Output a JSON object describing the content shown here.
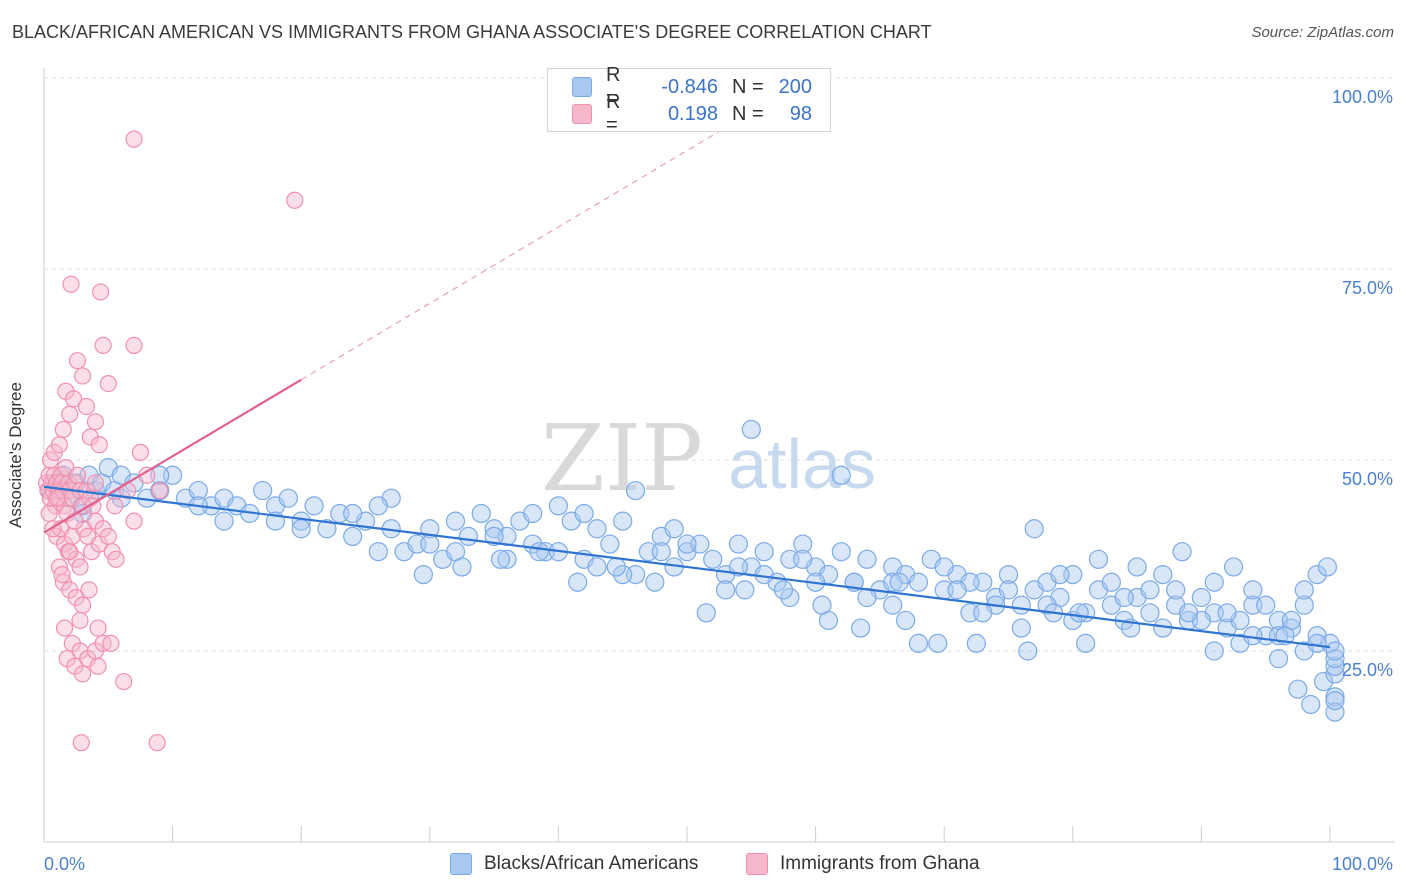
{
  "header": {
    "title": "BLACK/AFRICAN AMERICAN VS IMMIGRANTS FROM GHANA ASSOCIATE'S DEGREE CORRELATION CHART",
    "source": "Source: ZipAtlas.com"
  },
  "watermark": {
    "zip": "ZIP",
    "atlas": "atlas"
  },
  "legend": {
    "series1": {
      "r_label": "R =",
      "r_value": "-0.846",
      "n_label": "N =",
      "n_value": "200",
      "color": "#a9c8f0"
    },
    "series2": {
      "r_label": "R =",
      "r_value": "0.198",
      "n_label": "N =",
      "n_value": "98",
      "color": "#f5b8cb"
    }
  },
  "chart_data": {
    "type": "scatter",
    "title": "BLACK/AFRICAN AMERICAN VS IMMIGRANTS FROM GHANA ASSOCIATE'S DEGREE CORRELATION CHART",
    "xlabel": "",
    "ylabel": "Associate's Degree",
    "xlim": [
      0,
      100
    ],
    "ylim": [
      0,
      100
    ],
    "x_tick_labels": [
      "0.0%",
      "100.0%"
    ],
    "y_tick_labels": [
      "25.0%",
      "50.0%",
      "75.0%",
      "100.0%"
    ],
    "y_ticks": [
      25,
      50,
      75,
      100
    ],
    "grid": true,
    "legend_position": "bottom",
    "series": [
      {
        "name": "Blacks/African Americans",
        "color": "#7aaae8",
        "trend": {
          "x0": 0,
          "y0": 46.5,
          "x1": 100,
          "y1": 25.5
        },
        "points": [
          [
            0.5,
            46
          ],
          [
            1,
            47
          ],
          [
            1.5,
            48
          ],
          [
            2,
            45
          ],
          [
            2.5,
            47
          ],
          [
            3,
            44
          ],
          [
            3.5,
            48
          ],
          [
            4,
            46
          ],
          [
            4.5,
            47
          ],
          [
            5,
            49
          ],
          [
            5.5,
            46
          ],
          [
            6,
            48
          ],
          [
            7,
            47
          ],
          [
            8,
            45
          ],
          [
            9,
            46
          ],
          [
            10,
            48
          ],
          [
            11,
            45
          ],
          [
            12,
            46
          ],
          [
            13,
            44
          ],
          [
            14,
            45
          ],
          [
            15,
            44
          ],
          [
            16,
            43
          ],
          [
            17,
            46
          ],
          [
            18,
            44
          ],
          [
            19,
            45
          ],
          [
            20,
            42
          ],
          [
            21,
            44
          ],
          [
            22,
            41
          ],
          [
            23,
            43
          ],
          [
            24,
            40
          ],
          [
            25,
            42
          ],
          [
            26,
            38
          ],
          [
            27,
            41
          ],
          [
            28,
            38
          ],
          [
            29,
            39
          ],
          [
            30,
            41
          ],
          [
            31,
            37
          ],
          [
            32,
            42
          ],
          [
            33,
            40
          ],
          [
            34,
            43
          ],
          [
            35,
            41
          ],
          [
            36,
            37
          ],
          [
            37,
            42
          ],
          [
            38,
            39
          ],
          [
            39,
            38
          ],
          [
            40,
            44
          ],
          [
            41,
            42
          ],
          [
            42,
            37
          ],
          [
            43,
            41
          ],
          [
            44,
            39
          ],
          [
            45,
            42
          ],
          [
            46,
            35
          ],
          [
            47,
            38
          ],
          [
            48,
            40
          ],
          [
            49,
            36
          ],
          [
            50,
            38
          ],
          [
            51,
            39
          ],
          [
            52,
            37
          ],
          [
            53,
            35
          ],
          [
            54,
            39
          ],
          [
            55,
            36
          ],
          [
            56,
            38
          ],
          [
            57,
            34
          ],
          [
            58,
            37
          ],
          [
            59,
            39
          ],
          [
            60,
            36
          ],
          [
            61,
            35
          ],
          [
            62,
            38
          ],
          [
            63,
            34
          ],
          [
            64,
            37
          ],
          [
            65,
            33
          ],
          [
            66,
            36
          ],
          [
            67,
            35
          ],
          [
            68,
            34
          ],
          [
            69,
            37
          ],
          [
            70,
            33
          ],
          [
            71,
            35
          ],
          [
            72,
            30
          ],
          [
            73,
            34
          ],
          [
            74,
            32
          ],
          [
            75,
            35
          ],
          [
            76,
            31
          ],
          [
            77,
            33
          ],
          [
            78,
            34
          ],
          [
            79,
            32
          ],
          [
            80,
            35
          ],
          [
            81,
            30
          ],
          [
            82,
            33
          ],
          [
            83,
            31
          ],
          [
            84,
            29
          ],
          [
            85,
            32
          ],
          [
            86,
            30
          ],
          [
            87,
            28
          ],
          [
            88,
            31
          ],
          [
            89,
            29
          ],
          [
            90,
            32
          ],
          [
            91,
            30
          ],
          [
            92,
            28
          ],
          [
            93,
            29
          ],
          [
            94,
            31
          ],
          [
            95,
            27
          ],
          [
            96,
            29
          ],
          [
            97,
            28
          ],
          [
            98,
            25
          ],
          [
            99,
            27
          ],
          [
            100,
            26
          ],
          [
            12,
            44
          ],
          [
            18,
            42
          ],
          [
            24,
            43
          ],
          [
            30,
            39
          ],
          [
            36,
            40
          ],
          [
            42,
            43
          ],
          [
            48,
            38
          ],
          [
            54,
            36
          ],
          [
            60,
            34
          ],
          [
            66,
            34
          ],
          [
            72,
            34
          ],
          [
            78,
            31
          ],
          [
            84,
            32
          ],
          [
            90,
            29
          ],
          [
            96,
            27
          ],
          [
            55,
            54
          ],
          [
            62,
            48
          ],
          [
            77,
            41
          ],
          [
            61,
            29
          ],
          [
            66,
            31
          ],
          [
            70,
            36
          ],
          [
            74,
            31
          ],
          [
            79,
            35
          ],
          [
            83,
            34
          ],
          [
            88,
            33
          ],
          [
            92,
            30
          ],
          [
            95,
            31
          ],
          [
            46,
            46
          ],
          [
            27,
            45
          ],
          [
            35,
            40
          ],
          [
            40,
            38
          ],
          [
            45,
            35
          ],
          [
            50,
            39
          ],
          [
            56,
            35
          ],
          [
            58,
            32
          ],
          [
            64,
            32
          ],
          [
            68,
            26
          ],
          [
            73,
            30
          ],
          [
            76,
            28
          ],
          [
            80,
            29
          ],
          [
            82,
            37
          ],
          [
            85,
            36
          ],
          [
            86,
            33
          ],
          [
            89,
            30
          ],
          [
            91,
            34
          ],
          [
            93,
            26
          ],
          [
            94,
            33
          ],
          [
            97,
            29
          ],
          [
            98,
            31
          ],
          [
            99,
            35
          ],
          [
            96,
            24
          ],
          [
            97.5,
            20
          ],
          [
            98.5,
            18
          ],
          [
            99.5,
            21
          ],
          [
            100.5,
            22
          ],
          [
            101,
            23
          ],
          [
            102,
            24
          ],
          [
            103,
            19
          ],
          [
            104,
            25
          ],
          [
            102.5,
            17
          ],
          [
            101.5,
            18.5
          ],
          [
            99,
            26
          ],
          [
            3,
            43
          ],
          [
            6,
            45
          ],
          [
            9,
            48
          ],
          [
            14,
            42
          ],
          [
            20,
            41
          ],
          [
            26,
            44
          ],
          [
            32,
            38
          ],
          [
            38,
            43
          ],
          [
            43,
            36
          ],
          [
            49,
            41
          ],
          [
            53,
            33
          ],
          [
            59,
            37
          ],
          [
            63,
            34
          ],
          [
            67,
            29
          ],
          [
            71,
            33
          ],
          [
            75,
            33
          ],
          [
            81,
            26
          ],
          [
            87,
            35
          ],
          [
            91,
            25
          ],
          [
            94,
            27
          ],
          [
            99.8,
            36
          ],
          [
            98,
            33
          ],
          [
            96.5,
            27
          ],
          [
            92.5,
            36
          ],
          [
            88.5,
            38
          ],
          [
            84.5,
            28
          ],
          [
            80.5,
            30
          ],
          [
            78.5,
            30
          ],
          [
            76.5,
            25
          ],
          [
            72.5,
            26
          ],
          [
            69.5,
            26
          ],
          [
            66.5,
            34
          ],
          [
            63.5,
            28
          ],
          [
            60.5,
            31
          ],
          [
            57.5,
            33
          ],
          [
            54.5,
            33
          ],
          [
            51.5,
            30
          ],
          [
            47.5,
            34
          ],
          [
            44.5,
            36
          ],
          [
            41.5,
            34
          ],
          [
            38.5,
            38
          ],
          [
            35.5,
            37
          ],
          [
            32.5,
            36
          ],
          [
            29.5,
            35
          ]
        ]
      },
      {
        "name": "Immigrants from Ghana",
        "color": "#f090ad",
        "trend": {
          "x0": 0,
          "y0": 40.5,
          "x1": 20,
          "y1": 60.5,
          "dash_x1": 55,
          "dash_y1": 95.5
        },
        "points": [
          [
            0.2,
            47
          ],
          [
            0.3,
            46
          ],
          [
            0.4,
            48
          ],
          [
            0.5,
            45
          ],
          [
            0.6,
            47
          ],
          [
            0.7,
            46
          ],
          [
            0.8,
            48
          ],
          [
            0.9,
            44
          ],
          [
            1,
            47
          ],
          [
            1.1,
            46
          ],
          [
            1.2,
            45
          ],
          [
            1.3,
            48
          ],
          [
            1.4,
            47
          ],
          [
            1.5,
            46
          ],
          [
            1.6,
            44
          ],
          [
            1.7,
            49
          ],
          [
            1.8,
            43
          ],
          [
            1.9,
            47
          ],
          [
            2,
            46
          ],
          [
            2.2,
            45
          ],
          [
            2.4,
            47
          ],
          [
            2.6,
            48
          ],
          [
            2.8,
            46
          ],
          [
            3,
            44
          ],
          [
            3.3,
            46
          ],
          [
            3.6,
            45
          ],
          [
            4,
            47
          ],
          [
            0.5,
            50
          ],
          [
            0.8,
            51
          ],
          [
            1.2,
            52
          ],
          [
            1.5,
            54
          ],
          [
            1.7,
            59
          ],
          [
            2,
            56
          ],
          [
            2.3,
            58
          ],
          [
            2.6,
            63
          ],
          [
            3,
            61
          ],
          [
            3.3,
            57
          ],
          [
            3.6,
            53
          ],
          [
            4,
            55
          ],
          [
            4.3,
            52
          ],
          [
            4.6,
            65
          ],
          [
            5,
            60
          ],
          [
            2.1,
            73
          ],
          [
            4.4,
            72
          ],
          [
            7,
            65
          ],
          [
            7.5,
            51
          ],
          [
            8,
            48
          ],
          [
            9,
            46
          ],
          [
            1,
            40
          ],
          [
            1.3,
            41
          ],
          [
            1.6,
            39
          ],
          [
            1.9,
            38
          ],
          [
            2.2,
            40
          ],
          [
            2.5,
            37
          ],
          [
            2.8,
            36
          ],
          [
            3.1,
            41
          ],
          [
            3.4,
            40
          ],
          [
            3.7,
            38
          ],
          [
            4,
            42
          ],
          [
            4.3,
            39
          ],
          [
            4.6,
            41
          ],
          [
            5,
            40
          ],
          [
            5.3,
            38
          ],
          [
            5.6,
            37
          ],
          [
            7,
            42
          ],
          [
            1.5,
            34
          ],
          [
            2,
            33
          ],
          [
            2.5,
            32
          ],
          [
            3,
            31
          ],
          [
            3.5,
            33
          ],
          [
            1.6,
            28
          ],
          [
            2.2,
            26
          ],
          [
            2.8,
            25
          ],
          [
            3.4,
            24
          ],
          [
            4,
            25
          ],
          [
            4.6,
            26
          ],
          [
            5.2,
            26
          ],
          [
            1.8,
            24
          ],
          [
            2.4,
            23
          ],
          [
            3,
            22
          ],
          [
            4.2,
            23
          ],
          [
            6.2,
            21
          ],
          [
            2.9,
            13
          ],
          [
            8.8,
            13
          ],
          [
            7,
            92
          ],
          [
            19.5,
            84
          ],
          [
            0.4,
            43
          ],
          [
            0.7,
            41
          ],
          [
            1,
            45
          ],
          [
            2.4,
            42
          ],
          [
            3.8,
            44
          ],
          [
            5.5,
            44
          ],
          [
            6.5,
            46
          ],
          [
            1.2,
            36
          ],
          [
            2,
            38
          ],
          [
            1.4,
            35
          ],
          [
            2.8,
            29
          ],
          [
            4.2,
            28
          ]
        ]
      }
    ]
  },
  "bottom_legend": {
    "item1": {
      "label": "Blacks/African Americans",
      "color": "#a9c8f0"
    },
    "item2": {
      "label": "Immigrants from Ghana",
      "color": "#f5b8cb"
    }
  }
}
